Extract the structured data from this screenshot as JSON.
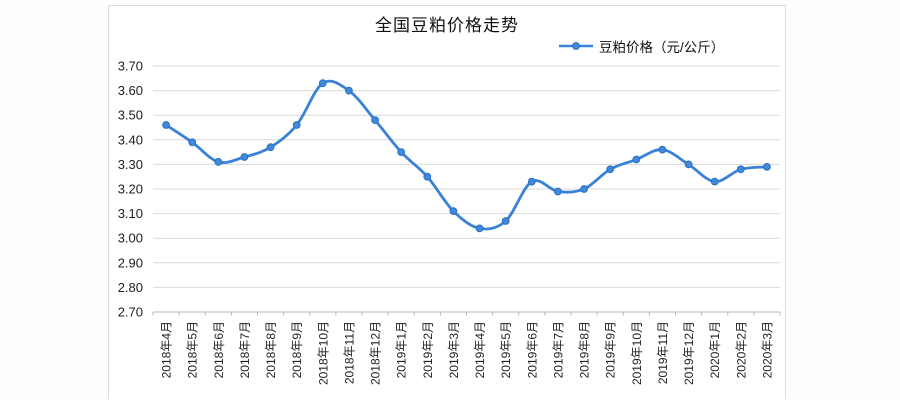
{
  "chart": {
    "title": "全国豆粕价格走势",
    "legend_label": "豆粕价格（元/公斤）"
  },
  "chart_data": {
    "type": "line",
    "smooth": true,
    "title": "全国豆粕价格走势",
    "xlabel": "",
    "ylabel": "",
    "legend_position": "top-right",
    "grid": true,
    "ylim": [
      2.7,
      3.7
    ],
    "y_ticks": [
      3.7,
      3.6,
      3.5,
      3.4,
      3.3,
      3.2,
      3.1,
      3.0,
      2.9,
      2.8,
      2.7
    ],
    "categories": [
      "2018年4月",
      "2018年5月",
      "2018年6月",
      "2018年7月",
      "2018年8月",
      "2018年9月",
      "2018年10月",
      "2018年11月",
      "2018年12月",
      "2019年1月",
      "2019年2月",
      "2019年3月",
      "2019年4月",
      "2019年5月",
      "2019年6月",
      "2019年7月",
      "2019年8月",
      "2019年9月",
      "2019年10月",
      "2019年11月",
      "2019年12月",
      "2020年1月",
      "2020年2月",
      "2020年3月"
    ],
    "series": [
      {
        "name": "豆粕价格（元/公斤）",
        "values": [
          3.46,
          3.39,
          3.31,
          3.33,
          3.37,
          3.46,
          3.63,
          3.6,
          3.48,
          3.35,
          3.25,
          3.11,
          3.04,
          3.07,
          3.23,
          3.19,
          3.2,
          3.28,
          3.32,
          3.36,
          3.3,
          3.23,
          3.28,
          3.29
        ]
      }
    ],
    "colors": {
      "line": "#3a82d8",
      "marker_fill": "#4189db",
      "marker_stroke": "#2d6fc0",
      "gridline": "#d9d9d9",
      "axis": "#b8b8b8",
      "text": "#1f1f1f",
      "frame_border": "#dcdcdc"
    }
  }
}
